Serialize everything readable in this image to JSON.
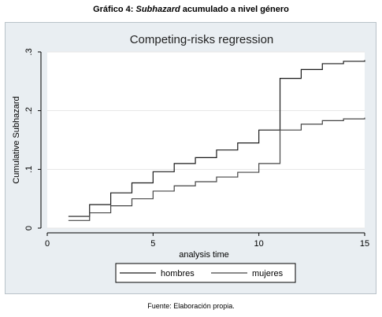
{
  "caption": {
    "prefix": "Gráfico 4: ",
    "emphasis": "Subhazard",
    "suffix": " acumulado a nivel género"
  },
  "source_note": "Fuente: Elaboración propia.",
  "chart_data": {
    "type": "line",
    "step": true,
    "title": "Competing-risks regression",
    "xlabel": "analysis time",
    "ylabel": "Cumulative Subhazard",
    "xlim": [
      0,
      15
    ],
    "ylim": [
      0,
      0.3
    ],
    "xticks": [
      {
        "value": 0,
        "label": "0"
      },
      {
        "value": 5,
        "label": "5"
      },
      {
        "value": 10,
        "label": "10"
      },
      {
        "value": 15,
        "label": "15"
      }
    ],
    "yticks": [
      {
        "value": 0,
        "label": "0"
      },
      {
        "value": 0.1,
        "label": ".1"
      },
      {
        "value": 0.2,
        "label": ".2"
      },
      {
        "value": 0.3,
        "label": ".3"
      }
    ],
    "grid": true,
    "legend_position": "bottom",
    "series": [
      {
        "name": "hombres",
        "color": "#1a1a1a",
        "x": [
          1,
          2,
          3,
          4,
          5,
          6,
          7,
          8,
          9,
          10,
          11,
          12,
          13,
          14,
          15
        ],
        "y": [
          0.02,
          0.04,
          0.06,
          0.077,
          0.096,
          0.11,
          0.12,
          0.133,
          0.145,
          0.167,
          0.255,
          0.27,
          0.28,
          0.284,
          0.286
        ]
      },
      {
        "name": "mujeres",
        "color": "#444444",
        "x": [
          1,
          2,
          3,
          4,
          5,
          6,
          7,
          8,
          9,
          10,
          11,
          12,
          13,
          14,
          15
        ],
        "y": [
          0.013,
          0.026,
          0.038,
          0.05,
          0.063,
          0.072,
          0.079,
          0.087,
          0.095,
          0.11,
          0.167,
          0.177,
          0.183,
          0.186,
          0.188
        ]
      }
    ]
  }
}
